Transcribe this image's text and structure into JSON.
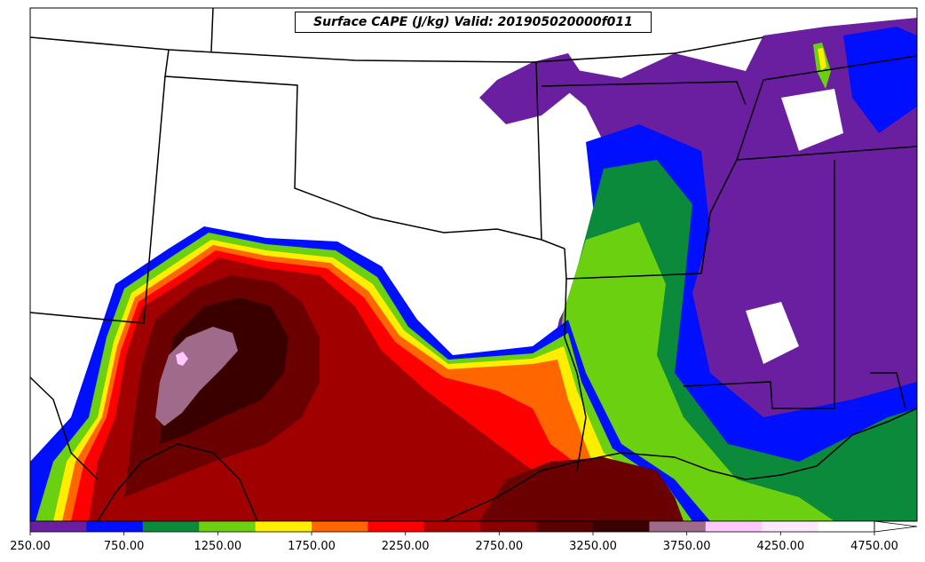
{
  "title": "Surface CAPE (J/kg) Valid: 201905020000f011",
  "colorbar": {
    "ticks": [
      "250.00",
      "750.00",
      "1250.00",
      "1750.00",
      "2250.00",
      "2750.00",
      "3250.00",
      "3750.00",
      "4250.00",
      "4750.00"
    ],
    "colors": [
      "#6a1fa0",
      "#0010ff",
      "#0a8a3a",
      "#6ad010",
      "#ffee00",
      "#ff6600",
      "#ff0000",
      "#b00000",
      "#8a0000",
      "#5a0000",
      "#3a0000",
      "#a06a8a",
      "#ffc8ff",
      "#ffe8ff",
      "#ffffff"
    ]
  },
  "map_colors": {
    "purple": "#6a1fa0",
    "blue": "#0010ff",
    "darkgreen": "#0a8a3a",
    "green": "#6ad010",
    "yellow": "#ffee00",
    "orange": "#ff6600",
    "red": "#ff0000",
    "darkred": "#a00000",
    "maroon": "#6a0000",
    "darkest": "#3a0000",
    "mauve": "#a06a8a",
    "pink": "#ffc8ff"
  }
}
